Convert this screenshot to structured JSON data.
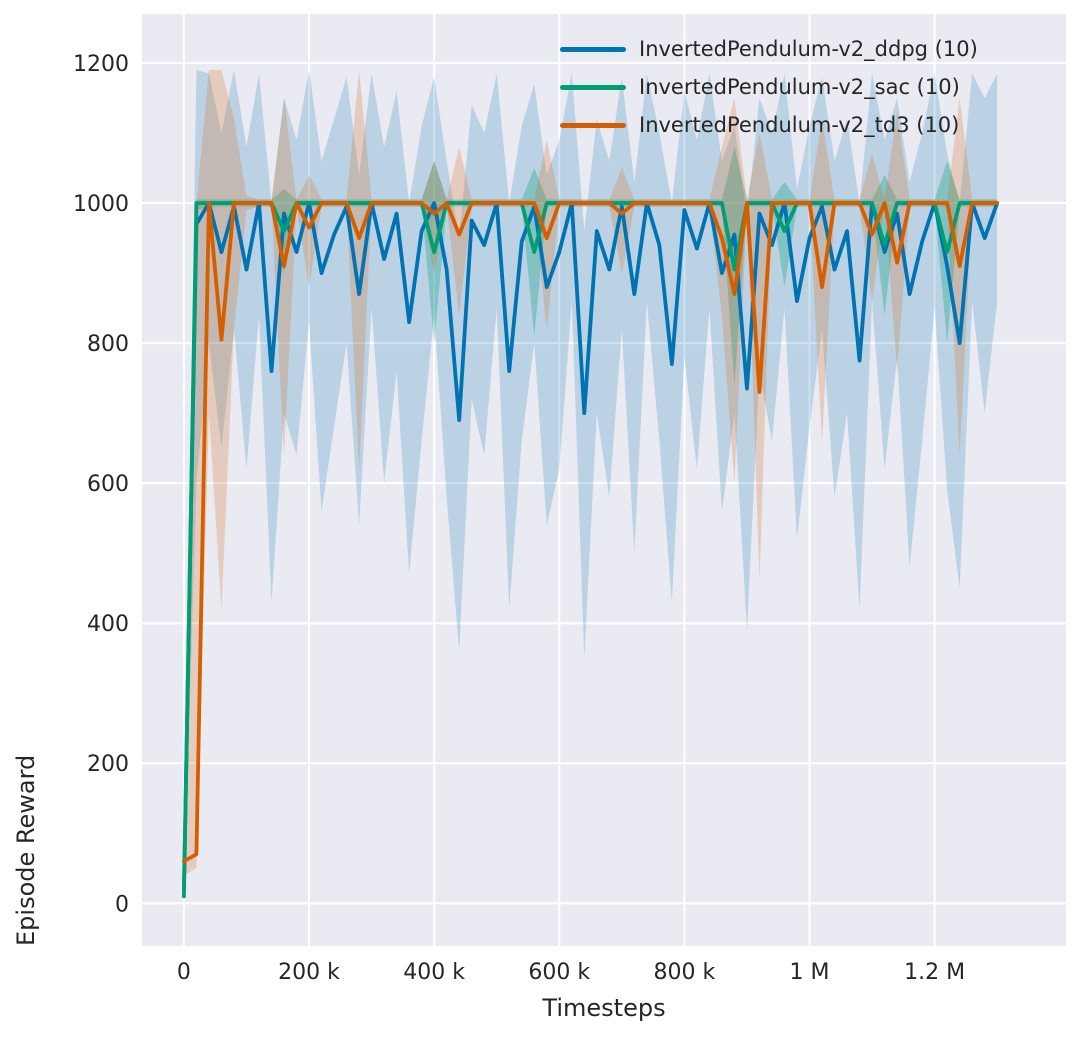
{
  "figure": {
    "background": "#ffffff",
    "axes_background": "#eaeaf2",
    "grid_color": "#ffffff",
    "text_color": "#262626"
  },
  "chart_data": {
    "type": "line",
    "title": "",
    "xlabel": "Timesteps",
    "ylabel": "Episode Reward",
    "grid": true,
    "legend_position": "upper right",
    "xlim": [
      -67000,
      1410000
    ],
    "ylim": [
      -61,
      1270
    ],
    "x_ticks": {
      "values": [
        0,
        200000,
        400000,
        600000,
        800000,
        1000000,
        1200000
      ],
      "labels": [
        "0",
        "200 k",
        "400 k",
        "600 k",
        "800 k",
        "1 M",
        "1.2 M"
      ]
    },
    "y_ticks": {
      "values": [
        0,
        200,
        400,
        600,
        800,
        1000,
        1200
      ],
      "labels": [
        "0",
        "200",
        "400",
        "600",
        "800",
        "1000",
        "1200"
      ]
    },
    "x_start": 0,
    "x_step": 20000,
    "series": [
      {
        "name": "ddpg",
        "label": "InvertedPendulum-v2_ddpg (10)",
        "color": "#0173b2",
        "band_alpha": 0.2,
        "mean": [
          20,
          970,
          1000,
          930,
          995,
          905,
          1000,
          760,
          985,
          930,
          1000,
          900,
          955,
          995,
          870,
          1000,
          920,
          985,
          830,
          960,
          1000,
          905,
          690,
          975,
          940,
          1000,
          760,
          945,
          995,
          880,
          930,
          1000,
          700,
          960,
          905,
          995,
          870,
          1000,
          940,
          770,
          990,
          935,
          1000,
          900,
          955,
          735,
          985,
          940,
          1000,
          860,
          950,
          995,
          905,
          960,
          775,
          1000,
          930,
          985,
          870,
          945,
          1000,
          910,
          800,
          1000,
          950,
          1000
        ],
        "lo": [
          5,
          600,
          800,
          650,
          820,
          620,
          840,
          430,
          700,
          640,
          830,
          560,
          680,
          800,
          540,
          850,
          600,
          760,
          470,
          660,
          840,
          580,
          360,
          720,
          640,
          850,
          420,
          660,
          800,
          540,
          620,
          860,
          350,
          700,
          580,
          820,
          500,
          860,
          660,
          430,
          780,
          620,
          850,
          560,
          700,
          390,
          760,
          660,
          850,
          520,
          680,
          820,
          580,
          700,
          420,
          860,
          620,
          780,
          480,
          660,
          850,
          590,
          450,
          860,
          700,
          860
        ],
        "hi": [
          60,
          1190,
          1185,
          1100,
          1190,
          1080,
          1185,
          1000,
          1150,
          1090,
          1190,
          1060,
          1120,
          1180,
          1040,
          1185,
          1080,
          1160,
          1000,
          1110,
          1180,
          1060,
          950,
          1140,
          1100,
          1185,
          1000,
          1110,
          1170,
          1040,
          1090,
          1185,
          960,
          1120,
          1060,
          1180,
          1030,
          1185,
          1100,
          1000,
          1160,
          1090,
          1185,
          1060,
          1110,
          980,
          1150,
          1100,
          1185,
          1020,
          1110,
          1180,
          1060,
          1120,
          1000,
          1185,
          1090,
          1150,
          1030,
          1100,
          1185,
          1070,
          1000,
          1185,
          1150,
          1185
        ]
      },
      {
        "name": "sac",
        "label": "InvertedPendulum-v2_sac (10)",
        "color": "#029e73",
        "band_alpha": 0.3,
        "mean": [
          10,
          1000,
          1000,
          1000,
          1000,
          1000,
          1000,
          1000,
          960,
          1000,
          1000,
          1000,
          1000,
          1000,
          1000,
          1000,
          1000,
          1000,
          1000,
          1000,
          930,
          1000,
          1000,
          1000,
          1000,
          1000,
          1000,
          1000,
          930,
          1000,
          1000,
          1000,
          1000,
          1000,
          1000,
          1000,
          1000,
          1000,
          1000,
          1000,
          1000,
          1000,
          1000,
          1000,
          905,
          1000,
          1000,
          1000,
          960,
          1000,
          1000,
          1000,
          1000,
          1000,
          1000,
          1000,
          940,
          1000,
          1000,
          1000,
          1000,
          930,
          1000,
          1000,
          1000,
          1000
        ],
        "lo": [
          5,
          990,
          995,
          995,
          995,
          995,
          995,
          995,
          900,
          995,
          995,
          995,
          995,
          995,
          995,
          995,
          995,
          995,
          995,
          995,
          800,
          995,
          995,
          995,
          995,
          995,
          995,
          995,
          810,
          995,
          995,
          995,
          995,
          995,
          995,
          995,
          995,
          995,
          995,
          995,
          995,
          995,
          995,
          995,
          740,
          995,
          995,
          995,
          880,
          995,
          995,
          995,
          995,
          995,
          995,
          995,
          840,
          995,
          995,
          995,
          995,
          800,
          995,
          995,
          995,
          995
        ],
        "hi": [
          15,
          1005,
          1005,
          1005,
          1005,
          1005,
          1005,
          1005,
          1020,
          1005,
          1005,
          1005,
          1005,
          1005,
          1005,
          1005,
          1005,
          1005,
          1005,
          1005,
          1060,
          1005,
          1005,
          1005,
          1005,
          1005,
          1005,
          1005,
          1050,
          1005,
          1005,
          1005,
          1005,
          1005,
          1005,
          1005,
          1005,
          1005,
          1005,
          1005,
          1005,
          1005,
          1005,
          1005,
          1080,
          1005,
          1005,
          1005,
          1030,
          1005,
          1005,
          1005,
          1005,
          1005,
          1005,
          1005,
          1040,
          1005,
          1005,
          1005,
          1005,
          1060,
          1005,
          1005,
          1005,
          1005
        ]
      },
      {
        "name": "td3",
        "label": "InvertedPendulum-v2_td3 (10)",
        "color": "#d55e00",
        "band_alpha": 0.22,
        "mean": [
          60,
          70,
          1000,
          805,
          1000,
          1000,
          1000,
          1000,
          910,
          1000,
          965,
          1000,
          1000,
          1000,
          950,
          1000,
          1000,
          1000,
          1000,
          1000,
          985,
          1000,
          955,
          1000,
          1000,
          1000,
          1000,
          1000,
          1000,
          950,
          1000,
          1000,
          1000,
          1000,
          1000,
          985,
          1000,
          1000,
          1000,
          1000,
          1000,
          1000,
          1000,
          950,
          870,
          1000,
          730,
          1000,
          1000,
          1000,
          1000,
          880,
          1000,
          1000,
          1000,
          955,
          1000,
          915,
          1000,
          1000,
          1000,
          1000,
          910,
          1000,
          1000,
          1000
        ],
        "lo": [
          40,
          50,
          700,
          420,
          820,
          990,
          995,
          995,
          640,
          995,
          880,
          995,
          995,
          995,
          620,
          995,
          995,
          995,
          995,
          995,
          900,
          995,
          840,
          995,
          995,
          995,
          995,
          995,
          995,
          820,
          995,
          995,
          995,
          995,
          995,
          900,
          995,
          995,
          995,
          995,
          995,
          995,
          995,
          840,
          600,
          995,
          460,
          995,
          995,
          995,
          995,
          660,
          995,
          995,
          995,
          860,
          995,
          760,
          995,
          995,
          995,
          995,
          640,
          995,
          995,
          995
        ],
        "hi": [
          80,
          1000,
          1190,
          1190,
          1120,
          1010,
          1005,
          1005,
          1150,
          1005,
          1040,
          1005,
          1005,
          1005,
          1190,
          1005,
          1005,
          1005,
          1005,
          1005,
          1060,
          1005,
          1080,
          1005,
          1005,
          1005,
          1005,
          1005,
          1005,
          1090,
          1005,
          1005,
          1005,
          1005,
          1005,
          1050,
          1005,
          1005,
          1005,
          1005,
          1005,
          1005,
          1005,
          1080,
          1150,
          1005,
          1100,
          1005,
          1005,
          1005,
          1005,
          1120,
          1005,
          1005,
          1005,
          1070,
          1005,
          1130,
          1005,
          1005,
          1005,
          1005,
          1150,
          1005,
          1005,
          1005
        ]
      }
    ]
  }
}
